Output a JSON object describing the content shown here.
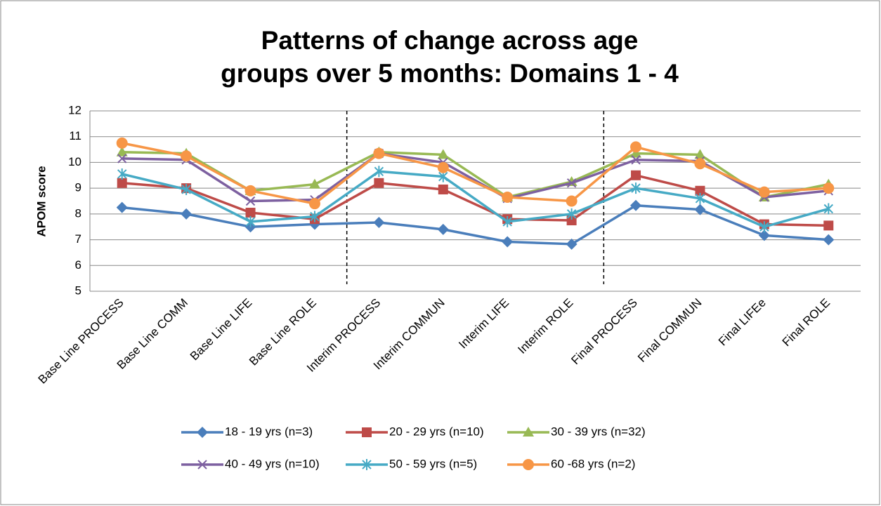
{
  "chart_data": {
    "type": "line",
    "title": "Patterns of change across age groups over 5 months: Domains 1 - 4",
    "y_label": "APOM score",
    "categories": [
      "Base Line PROCESS",
      "Base Line COMM",
      "Base Line LIFE",
      "Base Line ROLE",
      "Interim PROCESS",
      "Interim COMMUN",
      "Interim LIFE",
      "Interim ROLE",
      "Final PROCESS",
      "Final COMMUN",
      "Final LIFEe",
      "Final ROLE"
    ],
    "series": [
      {
        "name": "18 - 19 yrs (n=3)",
        "color": "#4a7ebb",
        "marker": "diamond",
        "values": [
          8.25,
          8.0,
          7.5,
          7.6,
          7.67,
          7.4,
          6.92,
          6.83,
          8.33,
          8.17,
          7.17,
          7.0
        ]
      },
      {
        "name": "20 - 29 yrs (n=10)",
        "color": "#be4b48",
        "marker": "square",
        "values": [
          9.2,
          9.0,
          8.05,
          7.8,
          9.2,
          8.95,
          7.8,
          7.75,
          9.5,
          8.9,
          7.6,
          7.55
        ]
      },
      {
        "name": "30 - 39 yrs (n=32)",
        "color": "#98b954",
        "marker": "triangle",
        "values": [
          10.4,
          10.35,
          8.9,
          9.15,
          10.4,
          10.3,
          8.65,
          9.25,
          10.35,
          10.3,
          8.65,
          9.15
        ]
      },
      {
        "name": "40 - 49 yrs (n=10)",
        "color": "#7d60a0",
        "marker": "x",
        "values": [
          10.15,
          10.1,
          8.5,
          8.55,
          10.35,
          10.0,
          8.6,
          9.2,
          10.1,
          10.05,
          8.65,
          8.9
        ]
      },
      {
        "name": "50 - 59 yrs (n=5)",
        "color": "#46aac5",
        "marker": "star",
        "values": [
          9.55,
          8.95,
          7.7,
          7.9,
          9.65,
          9.45,
          7.7,
          8.0,
          9.0,
          8.6,
          7.5,
          8.2
        ]
      },
      {
        "name": "60 -68 yrs (n=2)",
        "color": "#f79646",
        "marker": "circle",
        "values": [
          10.75,
          10.25,
          8.9,
          8.4,
          10.35,
          9.8,
          8.65,
          8.5,
          10.6,
          9.95,
          8.85,
          9.0
        ]
      }
    ],
    "ylim": [
      5,
      12
    ],
    "yticks": [
      5,
      6,
      7,
      8,
      9,
      10,
      11,
      12
    ],
    "grid": true,
    "legend": "bottom"
  }
}
